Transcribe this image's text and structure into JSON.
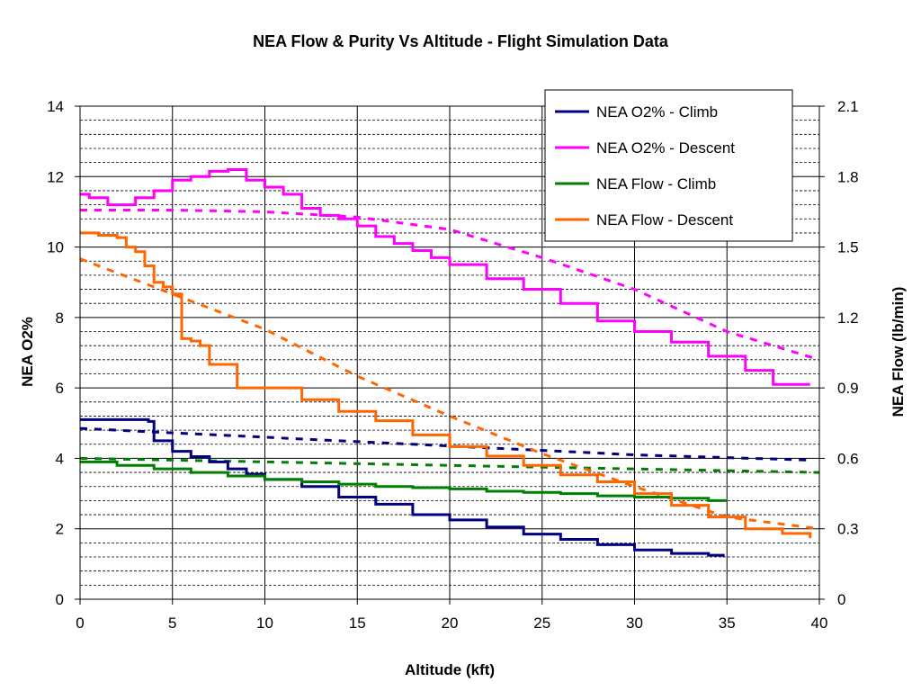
{
  "chart_data": {
    "type": "line",
    "title": "NEA Flow & Purity Vs Altitude - Flight Simulation Data",
    "xlabel": "Altitude (kft)",
    "ylabel": "NEA O2%",
    "y2label": "NEA Flow (lb/min)",
    "xlim": [
      0,
      40
    ],
    "ylim": [
      0,
      14
    ],
    "y2lim": [
      0,
      2.1
    ],
    "x_ticks": [
      "0",
      "5",
      "10",
      "15",
      "20",
      "25",
      "30",
      "35",
      "40"
    ],
    "y_ticks": [
      "0",
      "2",
      "4",
      "6",
      "8",
      "10",
      "12",
      "14"
    ],
    "y2_ticks": [
      "0",
      "0.3",
      "0.6",
      "0.9",
      "1.2",
      "1.5",
      "1.8",
      "2.1"
    ],
    "grid": true,
    "legend_position": "top-right",
    "series": [
      {
        "name": "NEA O2% - Climb",
        "axis": "left",
        "color": "#000080",
        "x": [
          0,
          3.7,
          4,
          5,
          6,
          7,
          8,
          9,
          10,
          12,
          14,
          16,
          18,
          20,
          22,
          24,
          26,
          28,
          30,
          32,
          34,
          34.8
        ],
        "y": [
          5.1,
          5.05,
          4.5,
          4.2,
          4.05,
          3.9,
          3.7,
          3.55,
          3.4,
          3.2,
          2.9,
          2.7,
          2.4,
          2.25,
          2.05,
          1.85,
          1.7,
          1.55,
          1.4,
          1.3,
          1.25,
          1.2
        ],
        "trend_x": [
          0,
          10,
          20,
          30,
          39.5
        ],
        "trend_y": [
          4.85,
          4.6,
          4.35,
          4.1,
          3.95
        ]
      },
      {
        "name": "NEA O2% - Descent",
        "axis": "left",
        "color": "#FF00FF",
        "x": [
          0,
          0.5,
          1.5,
          3,
          4,
          5,
          6,
          7,
          8,
          9,
          10,
          11,
          12,
          13,
          14,
          15,
          16,
          17,
          18,
          19,
          20,
          22,
          24,
          26,
          28,
          30,
          32,
          34,
          36,
          37.5,
          39.5
        ],
        "y": [
          11.5,
          11.4,
          11.2,
          11.4,
          11.6,
          11.9,
          12.0,
          12.15,
          12.2,
          11.9,
          11.7,
          11.5,
          11.1,
          10.9,
          10.8,
          10.6,
          10.3,
          10.1,
          9.9,
          9.7,
          9.5,
          9.1,
          8.8,
          8.4,
          7.9,
          7.6,
          7.3,
          6.9,
          6.5,
          6.1,
          6.1
        ],
        "trend_x": [
          0,
          5,
          10,
          15,
          20,
          25,
          30,
          35,
          40
        ],
        "trend_y": [
          11.05,
          11.05,
          11.0,
          10.85,
          10.5,
          9.7,
          8.8,
          7.6,
          6.8
        ]
      },
      {
        "name": "NEA Flow - Climb",
        "axis": "right",
        "color": "#008000",
        "x": [
          0,
          2,
          4,
          6,
          8,
          10,
          12,
          14,
          16,
          18,
          20,
          22,
          24,
          26,
          28,
          30,
          32,
          34,
          35
        ],
        "y": [
          0.585,
          0.57,
          0.555,
          0.54,
          0.525,
          0.51,
          0.5,
          0.49,
          0.48,
          0.475,
          0.47,
          0.46,
          0.455,
          0.45,
          0.44,
          0.435,
          0.43,
          0.42,
          0.42
        ],
        "trend_x": [
          0,
          10,
          20,
          30,
          40
        ],
        "trend_y": [
          0.6,
          0.585,
          0.57,
          0.555,
          0.54
        ]
      },
      {
        "name": "NEA Flow - Descent",
        "axis": "right",
        "color": "#FF6600",
        "x": [
          0,
          1,
          2,
          2.5,
          3,
          3.5,
          4,
          4.5,
          5,
          5.5,
          6,
          6.5,
          7,
          8,
          8.5,
          10,
          12,
          14,
          16,
          18,
          20,
          22,
          24,
          26,
          28,
          30,
          32,
          34,
          36,
          38,
          39.5
        ],
        "y": [
          1.56,
          1.55,
          1.54,
          1.5,
          1.48,
          1.42,
          1.35,
          1.33,
          1.3,
          1.11,
          1.1,
          1.08,
          1.0,
          1.0,
          0.9,
          0.9,
          0.85,
          0.8,
          0.76,
          0.7,
          0.65,
          0.61,
          0.57,
          0.53,
          0.5,
          0.45,
          0.4,
          0.35,
          0.3,
          0.28,
          0.26
        ],
        "trend_x": [
          0,
          5,
          10,
          15,
          20,
          25,
          30,
          35,
          40
        ],
        "trend_y": [
          1.45,
          1.3,
          1.15,
          0.95,
          0.78,
          0.62,
          0.48,
          0.35,
          0.3
        ]
      }
    ]
  }
}
